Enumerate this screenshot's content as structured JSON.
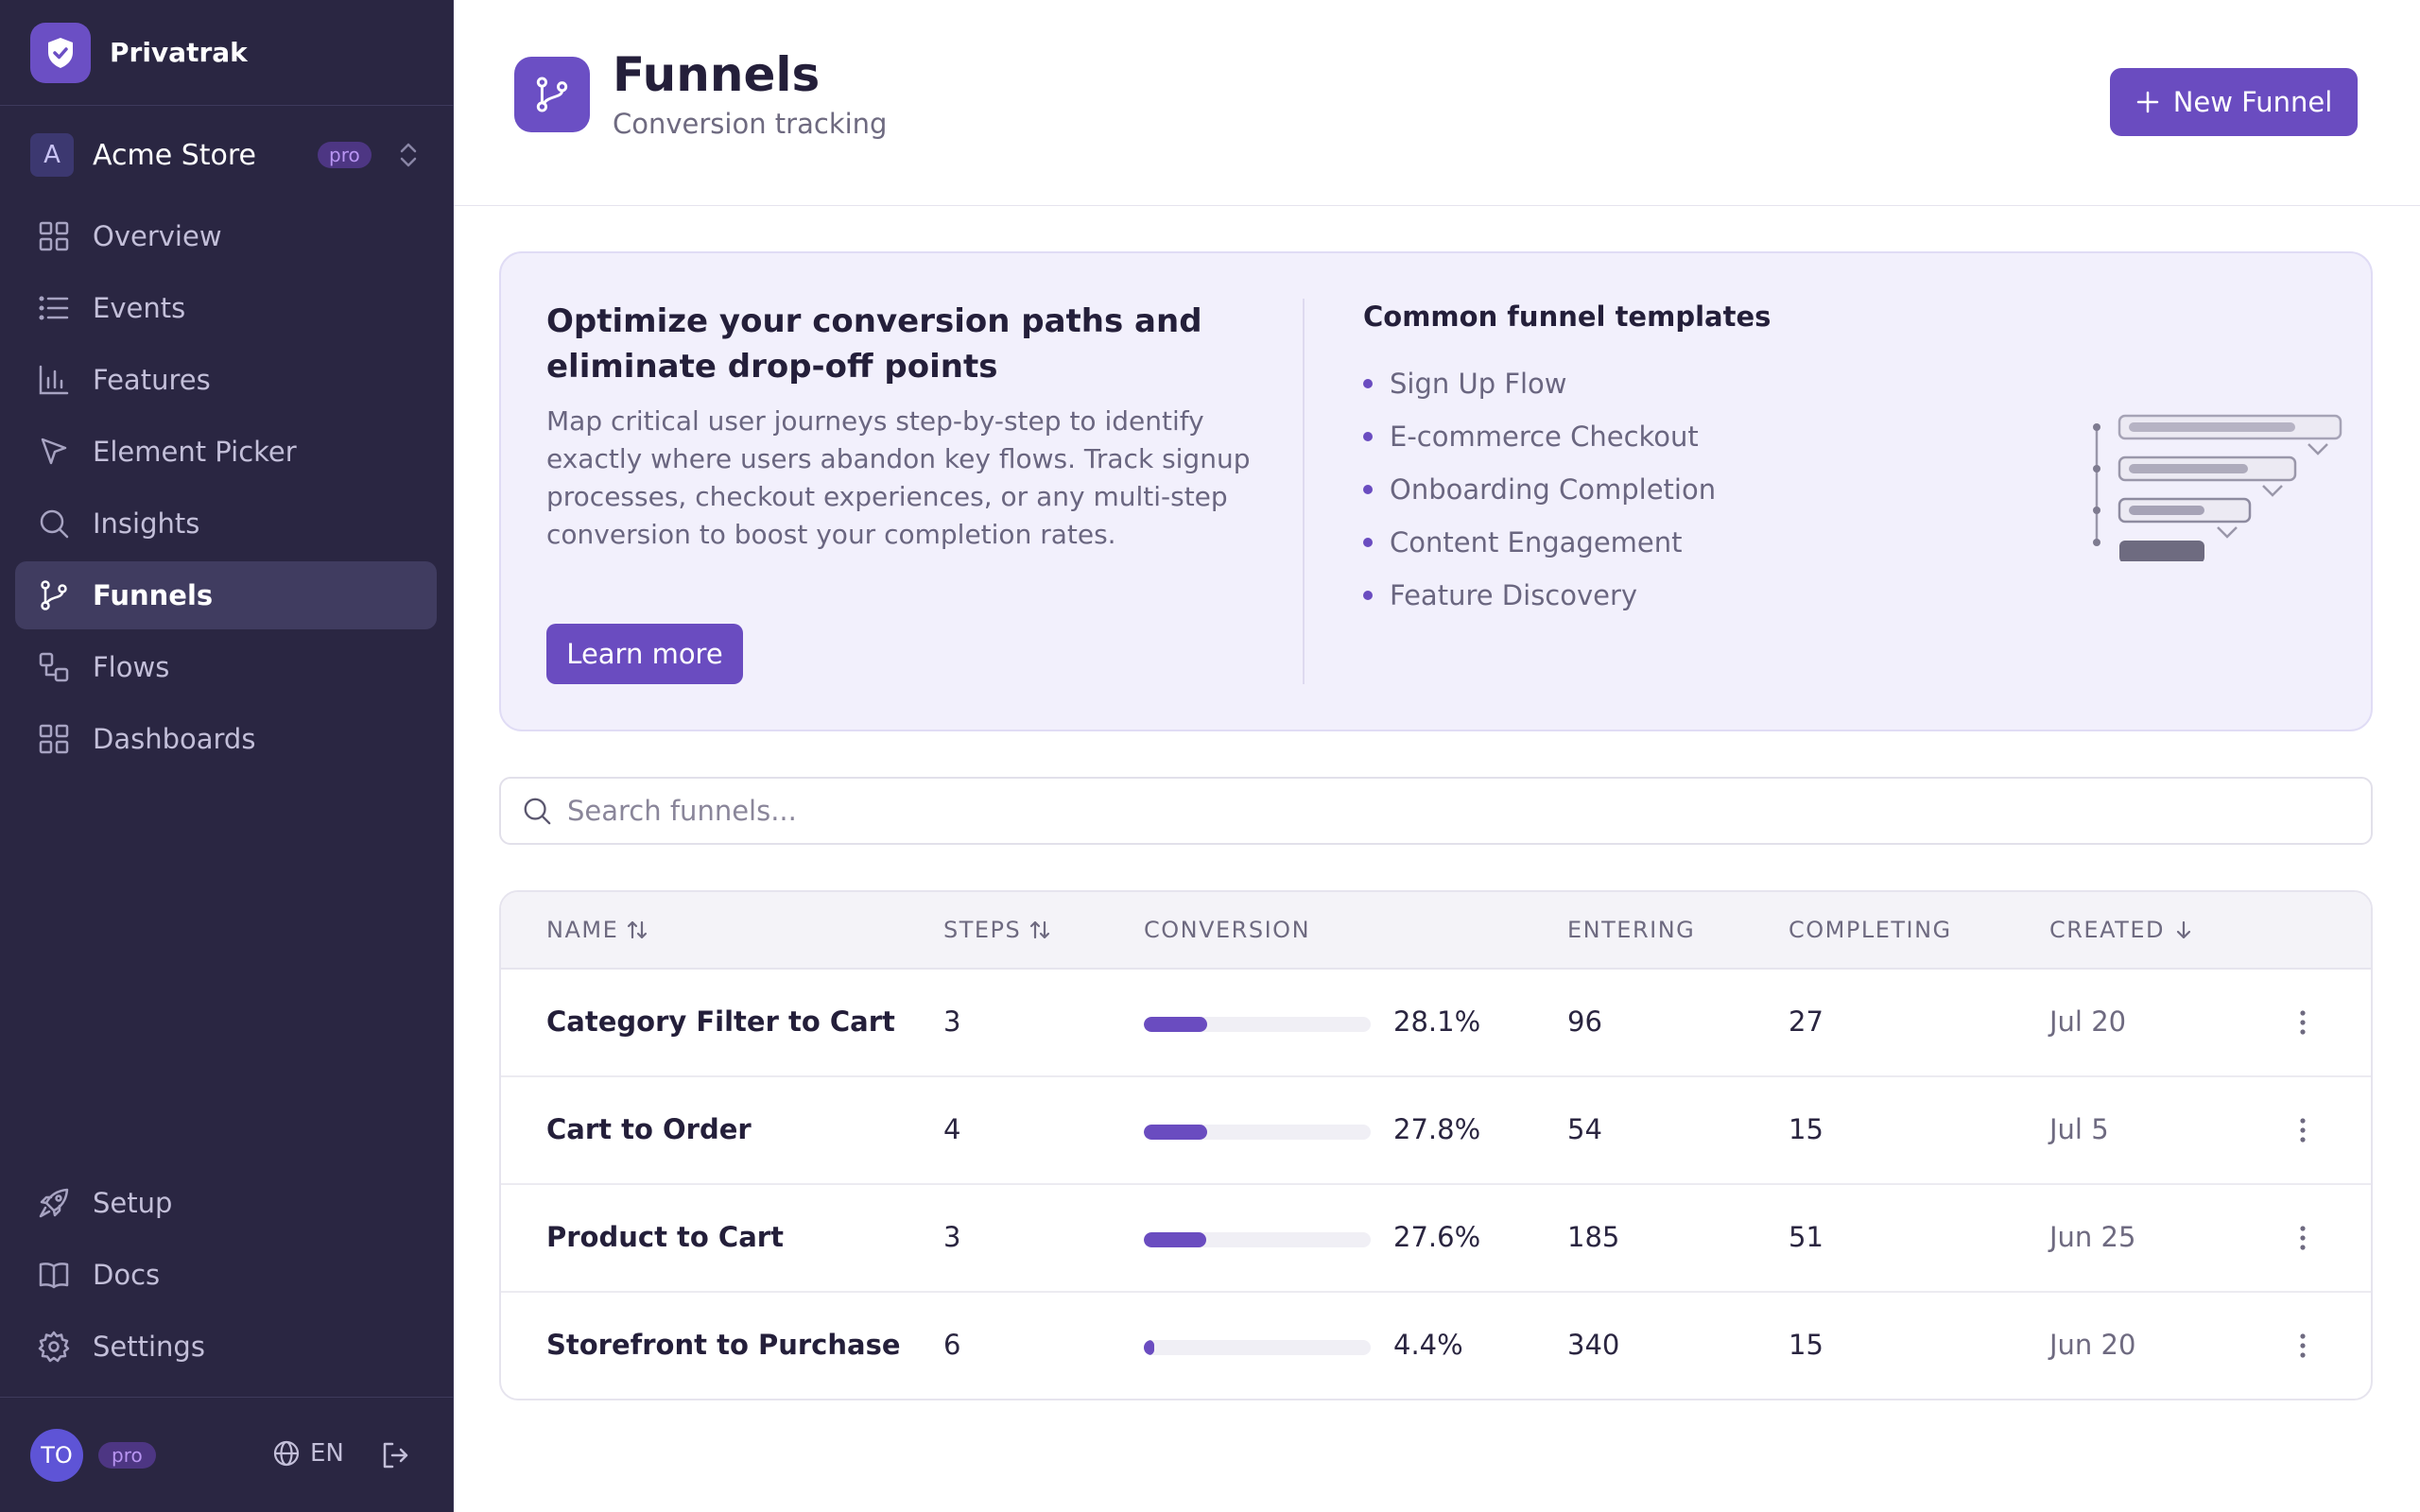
{
  "app": {
    "name": "Privatrak"
  },
  "workspace": {
    "initial": "A",
    "name": "Acme Store",
    "plan": "pro"
  },
  "nav": {
    "main": [
      {
        "label": "Overview",
        "icon": "grid-icon",
        "active": false
      },
      {
        "label": "Events",
        "icon": "list-icon",
        "active": false
      },
      {
        "label": "Features",
        "icon": "bar-chart-icon",
        "active": false
      },
      {
        "label": "Element Picker",
        "icon": "cursor-icon",
        "active": false
      },
      {
        "label": "Insights",
        "icon": "search-icon",
        "active": false
      },
      {
        "label": "Funnels",
        "icon": "git-branch-icon",
        "active": true
      },
      {
        "label": "Flows",
        "icon": "flow-icon",
        "active": false
      },
      {
        "label": "Dashboards",
        "icon": "grid-icon",
        "active": false
      }
    ],
    "bottom": [
      {
        "label": "Setup",
        "icon": "rocket-icon"
      },
      {
        "label": "Docs",
        "icon": "book-icon"
      },
      {
        "label": "Settings",
        "icon": "gear-icon"
      }
    ]
  },
  "user": {
    "initials": "TO",
    "plan": "pro",
    "language": "EN"
  },
  "header": {
    "title": "Funnels",
    "subtitle": "Conversion tracking",
    "new_button": "New Funnel"
  },
  "promo": {
    "title": "Optimize your conversion paths and eliminate drop-off points",
    "text": "Map critical user journeys step-by-step to identify exactly where users abandon key flows. Track signup processes, checkout experiences, or any multi-step conversion to boost your completion rates.",
    "button": "Learn more",
    "templates_title": "Common funnel templates",
    "templates": [
      "Sign Up Flow",
      "E-commerce Checkout",
      "Onboarding Completion",
      "Content Engagement",
      "Feature Discovery"
    ]
  },
  "search": {
    "placeholder": "Search funnels..."
  },
  "table": {
    "columns": {
      "name": "NAME",
      "steps": "STEPS",
      "conversion": "CONVERSION",
      "entering": "ENTERING",
      "completing": "COMPLETING",
      "created": "CREATED"
    },
    "rows": [
      {
        "name": "Category Filter to Cart",
        "steps": "3",
        "conversion": "28.1%",
        "conversion_value": 28.1,
        "entering": "96",
        "completing": "27",
        "created": "Jul 20"
      },
      {
        "name": "Cart to Order",
        "steps": "4",
        "conversion": "27.8%",
        "conversion_value": 27.8,
        "entering": "54",
        "completing": "15",
        "created": "Jul 5"
      },
      {
        "name": "Product to Cart",
        "steps": "3",
        "conversion": "27.6%",
        "conversion_value": 27.6,
        "entering": "185",
        "completing": "51",
        "created": "Jun 25"
      },
      {
        "name": "Storefront to Purchase",
        "steps": "6",
        "conversion": "4.4%",
        "conversion_value": 4.4,
        "entering": "340",
        "completing": "15",
        "created": "Jun 20"
      }
    ]
  },
  "colors": {
    "accent": "#6a4cc0",
    "sidebar_bg": "#2a2642",
    "promo_bg": "#f2f0fc"
  }
}
